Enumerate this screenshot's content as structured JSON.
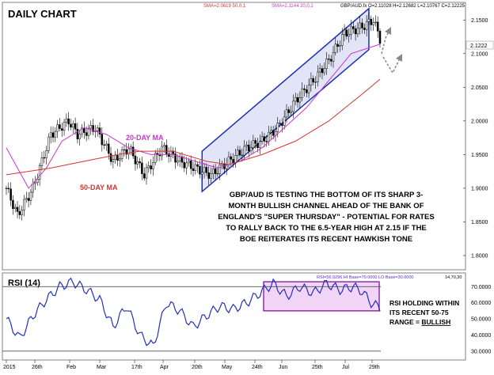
{
  "chart_data": [
    {
      "type": "candlestick",
      "title": "DAILY CHART",
      "symbol_info": "GBP/AUD.fx O=2.11028 H=2.12682 L=2.10767 C=2.12225",
      "indicators": [
        {
          "label": "SMA=2.0619 50,0,1",
          "color": "#d4352f"
        },
        {
          "label": "SMA=2.1144 20,0,1",
          "color": "#cc33cc"
        }
      ],
      "last_price": "2.1222",
      "x_tick_labels": [
        "2015",
        "26th",
        "Feb",
        "Mar",
        "17th",
        "Apr",
        "20th",
        "May",
        "24th",
        "Jun",
        "25th",
        "Jul",
        "29th"
      ],
      "y_tick_labels": [
        "2.1500",
        "2.1000",
        "2.0500",
        "2.0000",
        "1.9500",
        "1.9000",
        "1.8500",
        "1.8000"
      ],
      "ylim": [
        1.78,
        2.175
      ],
      "grid": false,
      "annotations": [
        {
          "text": "20-DAY MA",
          "color": "#cc33cc"
        },
        {
          "text": "50-DAY MA",
          "color": "#d4352f"
        },
        {
          "lines": [
            "GBP/AUD IS TESTING THE BOTTOM OF ITS SHARP 3-",
            "MONTH BULLISH CHANNEL AHEAD OF THE BANK OF",
            "ENGLAND'S \"SUPER THURSDAY\" - POTENTIAL FOR RATES",
            "TO RALLY BACK TO THE 6.5-YEAR HIGH AT 2.15 IF THE",
            "BOE REITERATES ITS RECENT HAWKISH TONE"
          ]
        }
      ],
      "channel": {
        "upper_start": 1.955,
        "upper_end": 2.167,
        "lower_start": 1.895,
        "lower_end": 2.106
      },
      "series_keypoints": [
        {
          "name": "price",
          "x_index": [
            0,
            5,
            12,
            20,
            28,
            32,
            40,
            48,
            55,
            62,
            70,
            78,
            85,
            92,
            100,
            108,
            115,
            122,
            130,
            138,
            145,
            152,
            160,
            165,
            168
          ],
          "close": [
            1.9,
            1.86,
            1.9,
            1.98,
            2.0,
            1.98,
            1.99,
            1.94,
            1.96,
            1.92,
            1.96,
            1.94,
            1.93,
            1.92,
            1.94,
            1.96,
            1.97,
            1.99,
            2.03,
            2.06,
            2.09,
            2.13,
            2.14,
            2.15,
            2.122
          ]
        },
        {
          "name": "SMA 20",
          "x_index": [
            0,
            10,
            18,
            25,
            35,
            45,
            55,
            65,
            75,
            85,
            95,
            105,
            115,
            125,
            135,
            145,
            155,
            168
          ],
          "values": [
            1.96,
            1.9,
            1.93,
            1.97,
            1.99,
            1.98,
            1.96,
            1.95,
            1.95,
            1.94,
            1.93,
            1.94,
            1.96,
            1.99,
            2.02,
            2.06,
            2.1,
            2.114
          ]
        },
        {
          "name": "SMA 50",
          "x_index": [
            0,
            20,
            35,
            50,
            60,
            75,
            90,
            100,
            115,
            130,
            145,
            160,
            168
          ],
          "values": [
            1.92,
            1.93,
            1.94,
            1.95,
            1.955,
            1.955,
            1.94,
            1.935,
            1.95,
            1.97,
            2.0,
            2.04,
            2.062
          ]
        }
      ]
    },
    {
      "type": "line",
      "title": "RSI (14)",
      "info": "RSI=56.9296 HI Base=70.0000 LO Base=30.0000",
      "info_params": "14,70,30",
      "y_tick_labels": [
        "70.0000",
        "60.0000",
        "50.0000",
        "40.0000",
        "30.0000"
      ],
      "ylim": [
        25,
        78
      ],
      "levels": [
        70,
        30
      ],
      "range_box": {
        "low": 55,
        "high": 73
      },
      "annotation": {
        "lines": [
          "RSI HOLDING WITHIN",
          "ITS RECENT 50-75",
          "RANGE = "
        ],
        "emphasis": "BULLISH"
      },
      "series": [
        {
          "name": "RSI",
          "x_index": [
            0,
            6,
            12,
            18,
            24,
            30,
            36,
            42,
            48,
            54,
            60,
            66,
            72,
            78,
            84,
            90,
            96,
            102,
            108,
            114,
            120,
            126,
            132,
            138,
            144,
            150,
            156,
            160,
            164,
            168
          ],
          "values": [
            50,
            38,
            52,
            62,
            70,
            73,
            68,
            62,
            45,
            58,
            40,
            33,
            60,
            55,
            45,
            52,
            58,
            56,
            60,
            66,
            72,
            64,
            70,
            66,
            72,
            68,
            70,
            67,
            60,
            56.9
          ]
        }
      ]
    }
  ]
}
